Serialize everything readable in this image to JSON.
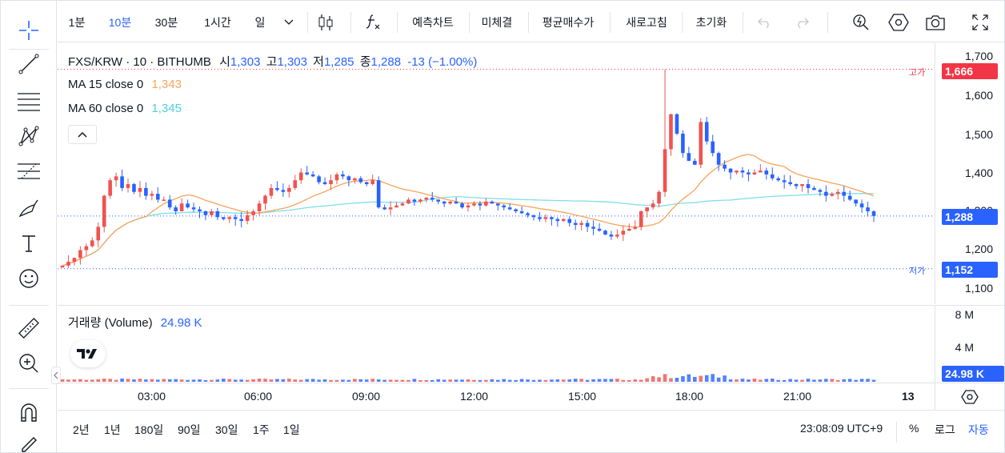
{
  "toolbar": {
    "intervals": [
      "1분",
      "10분",
      "30분",
      "1시간",
      "일"
    ],
    "active_interval": "10분",
    "buttons": [
      "예측차트",
      "미체결",
      "평균매수가",
      "새로고침",
      "초기화"
    ]
  },
  "legend": {
    "symbol": "FXS/KRW · 10 · BITHUMB",
    "open_label": "시",
    "open": "1,303",
    "high_label": "고",
    "high": "1,303",
    "low_label": "저",
    "low": "1,285",
    "close_label": "종",
    "close": "1,288",
    "change": "-13 (−1.00%)",
    "ma15_label": "MA 15 close 0",
    "ma15_value": "1,343",
    "ma60_label": "MA 60 close 0",
    "ma60_value": "1,345",
    "volume_label": "거래량 (Volume)",
    "volume_value": "24.98 K"
  },
  "price_scale": {
    "ticks": [
      "1,700",
      "1,600",
      "1,500",
      "1,400",
      "1,300",
      "1,200",
      "1,100"
    ],
    "high_tag": "고가",
    "high_badge": "1,666",
    "low_tag": "저가",
    "low_badge": "1,152",
    "last_badge": "1,288"
  },
  "volume_scale": {
    "ticks": [
      "8 M",
      "4 M"
    ],
    "last_badge": "24.98 K"
  },
  "time_scale": {
    "ticks": [
      "03:00",
      "06:00",
      "09:00",
      "12:00",
      "15:00",
      "18:00",
      "21:00",
      "13"
    ]
  },
  "bottom": {
    "ranges": [
      "2년",
      "1년",
      "180일",
      "90일",
      "30일",
      "1주",
      "1일"
    ],
    "clock": "23:08:09 UTC+9",
    "percent": "%",
    "log": "로그",
    "auto": "자동"
  },
  "colors": {
    "up": "#ef5350",
    "down": "#2962ff",
    "ma15": "#f7a35c",
    "ma60": "#80deea",
    "accent": "#2962ff"
  },
  "chart_data": {
    "type": "candlestick",
    "title": "FXS/KRW · 10 · BITHUMB",
    "ylim": [
      1100,
      1700
    ],
    "x_ticks": [
      "03:00",
      "06:00",
      "09:00",
      "12:00",
      "15:00",
      "18:00",
      "21:00",
      "13"
    ],
    "series": [
      {
        "name": "FXS/KRW",
        "close_path": [
          1160,
          1170,
          1180,
          1200,
          1210,
          1225,
          1260,
          1340,
          1380,
          1390,
          1360,
          1370,
          1350,
          1360,
          1340,
          1345,
          1330,
          1330,
          1310,
          1300,
          1320,
          1310,
          1305,
          1300,
          1290,
          1300,
          1285,
          1280,
          1285,
          1280,
          1275,
          1290,
          1300,
          1320,
          1340,
          1360,
          1355,
          1350,
          1360,
          1380,
          1400,
          1395,
          1390,
          1375,
          1370,
          1380,
          1395,
          1390,
          1380,
          1385,
          1375,
          1370,
          1380,
          1310,
          1305,
          1310,
          1315,
          1320,
          1330,
          1325,
          1330,
          1335,
          1330,
          1325,
          1320,
          1325,
          1320,
          1310,
          1315,
          1320,
          1315,
          1325,
          1320,
          1315,
          1310,
          1305,
          1300,
          1295,
          1290,
          1285,
          1280,
          1285,
          1280,
          1275,
          1280,
          1270,
          1265,
          1270,
          1260,
          1255,
          1250,
          1240,
          1235,
          1240,
          1250,
          1255,
          1260,
          1300,
          1310,
          1320,
          1350,
          1460,
          1550,
          1500,
          1450,
          1430,
          1420,
          1530,
          1480,
          1450,
          1420,
          1410,
          1400,
          1405,
          1400,
          1395,
          1400,
          1405,
          1395,
          1385,
          1380,
          1375,
          1370,
          1365,
          1370,
          1360,
          1355,
          1350,
          1340,
          1345,
          1350,
          1340,
          1330,
          1320,
          1310,
          1300,
          1288
        ]
      },
      {
        "name": "MA 15 close 0",
        "value": 1343
      },
      {
        "name": "MA 60 close 0",
        "value": 1345
      }
    ],
    "high": 1666,
    "low": 1152,
    "last": 1288,
    "volume": {
      "name": "거래량 (Volume)",
      "last": "24.98 K",
      "ticks": [
        "8 M",
        "4 M"
      ]
    }
  }
}
